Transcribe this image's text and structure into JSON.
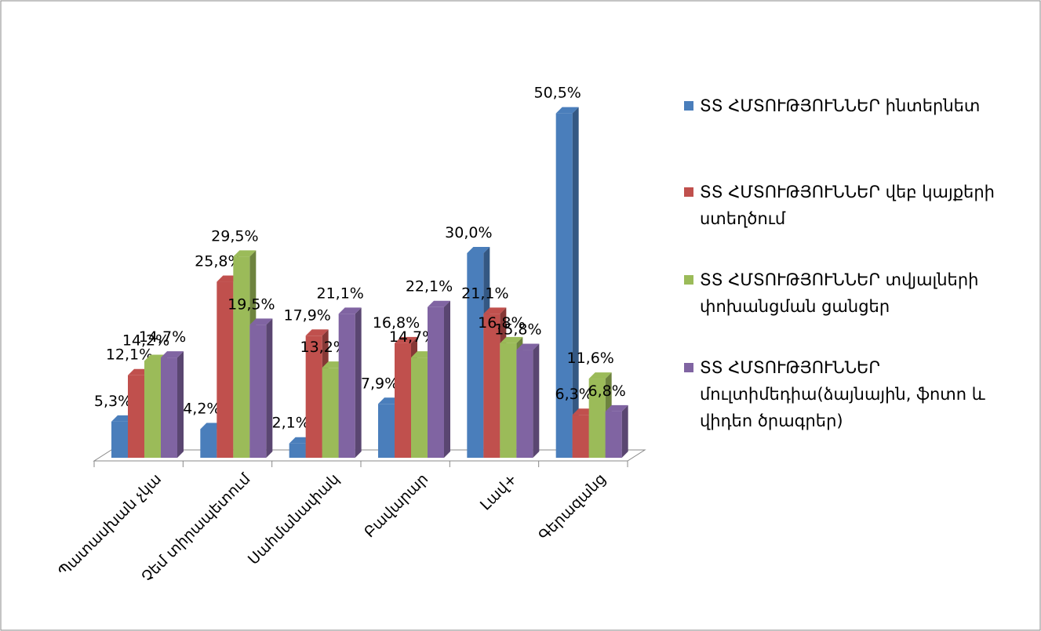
{
  "chart_data": {
    "type": "bar3d",
    "categories": [
      "Պատասխան չկա",
      "Չեմ տիրապետում",
      "Սահմանափակ",
      "Բավարար",
      "Լավ+",
      "Գերազանց"
    ],
    "series": [
      {
        "name": "ՏՏ ՀՄՏՈՒԹՅՈՒՆՆԵՐ ինտերնետ",
        "color": "#4a7ebb",
        "values": [
          5.3,
          4.2,
          2.1,
          7.9,
          30.0,
          50.5
        ],
        "value_labels": [
          "5,3%",
          "4,2%",
          "2,1%",
          "7,9%",
          "30,0%",
          "50,5%"
        ]
      },
      {
        "name": "ՏՏ ՀՄՏՈՒԹՅՈՒՆՆԵՐ վեբ կայքերի ստեղծում",
        "color": "#c0504d",
        "values": [
          12.1,
          25.8,
          17.9,
          16.8,
          21.1,
          6.3
        ],
        "value_labels": [
          "12,1%",
          "25,8%",
          "17,9%",
          "16,8%",
          "21,1%",
          "6,3%"
        ]
      },
      {
        "name": "ՏՏ ՀՄՏՈՒԹՅՈՒՆՆԵՐ տվյալների փոխանցման ցանցեր",
        "color": "#9bbb59",
        "values": [
          14.2,
          29.5,
          13.2,
          14.7,
          16.8,
          11.6
        ],
        "value_labels": [
          "14,2%",
          "29,5%",
          "13,2%",
          "14,7%",
          "16,8%",
          "11,6%"
        ]
      },
      {
        "name": "ՏՏ ՀՄՏՈՒԹՅՈՒՆՆԵՐ մուլտիմեդիա(ձայնային, ֆոտո և վիդեո ծրագրեր)",
        "color": "#8064a2",
        "values": [
          14.7,
          19.5,
          21.1,
          22.1,
          15.8,
          6.8
        ],
        "value_labels": [
          "14,7%",
          "19,5%",
          "21,1%",
          "22,1%",
          "15,8%",
          "6,8%"
        ]
      }
    ],
    "legend": "right"
  }
}
